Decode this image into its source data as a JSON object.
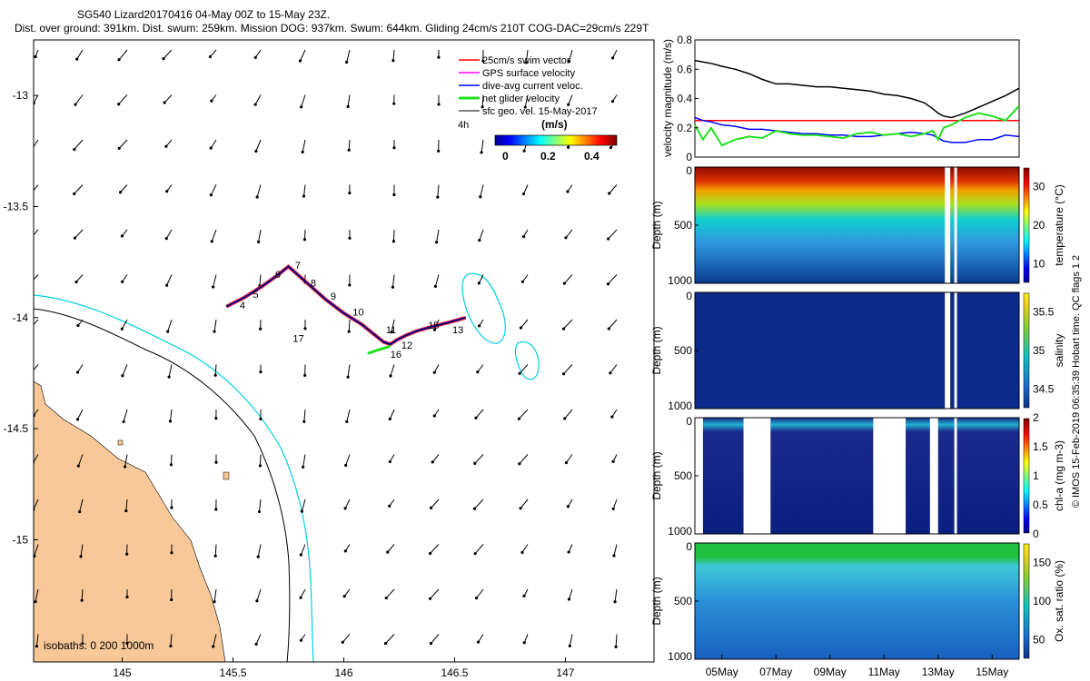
{
  "title_line1": "SG540 Lizard20170416 04-May 00Z to 15-May 23Z.",
  "title_line2": "Dist. over ground: 391km. Dist. swum: 259km. Mission DOG: 937km. Swum: 644km. Gliding 24cm/s 210T COG-DAC=29cm/s 229T",
  "credit": "© IMOS 15-Feb-2019 06:35:39 Hobart time. QC flags 1  2",
  "colors": {
    "land": "#f8c898",
    "isobath_200": "#000000",
    "isobath_1000": "#00d0e0",
    "swim": "#ff0000",
    "gps": "#ff00ff",
    "dac": "#0000ff",
    "net": "#20e020",
    "sfc": "#000000"
  },
  "chart_data": [
    {
      "type": "scatter",
      "subtype": "map",
      "xticks": [
        145,
        145.5,
        146,
        146.5,
        147
      ],
      "yticks": [
        -13,
        -13.5,
        -14,
        -14.5,
        -15
      ],
      "xlim": [
        144.6,
        147.4
      ],
      "ylim": [
        -15.55,
        -12.75
      ],
      "legend": {
        "items": [
          "25cm/s swim vector",
          "GPS surface velocity",
          "dive-avg current veloc.",
          "net glider velocity",
          "sfc geo. vel. 15-May-2017"
        ],
        "placement": "top-right",
        "scale_label": "4h",
        "colorbar_title": "(m/s)",
        "colorbar_ticks": [
          "0",
          "0.2",
          "0.4"
        ]
      },
      "isobaths_label": "isobaths: 0   200  1000m",
      "track_lon": [
        145.47,
        145.55,
        145.63,
        145.7,
        145.75,
        145.83,
        145.92,
        146.0,
        146.08,
        146.13,
        146.18,
        146.21,
        146.24,
        146.28,
        146.33,
        146.4,
        146.48,
        146.55
      ],
      "track_lat": [
        -13.95,
        -13.91,
        -13.86,
        -13.81,
        -13.77,
        -13.84,
        -13.92,
        -13.98,
        -14.03,
        -14.07,
        -14.11,
        -14.12,
        -14.1,
        -14.08,
        -14.06,
        -14.04,
        -14.02,
        -14.0
      ],
      "track_labels": [
        {
          "t": "4",
          "lon": 145.53,
          "lat": -13.96
        },
        {
          "t": "5",
          "lon": 145.59,
          "lat": -13.91
        },
        {
          "t": "6",
          "lon": 145.69,
          "lat": -13.82
        },
        {
          "t": "7",
          "lon": 145.78,
          "lat": -13.78
        },
        {
          "t": "8",
          "lon": 145.85,
          "lat": -13.86
        },
        {
          "t": "9",
          "lon": 145.94,
          "lat": -13.92
        },
        {
          "t": "10",
          "lon": 146.04,
          "lat": -13.99
        },
        {
          "t": "11",
          "lon": 146.19,
          "lat": -14.07
        },
        {
          "t": "12",
          "lon": 146.26,
          "lat": -14.14
        },
        {
          "t": "13",
          "lon": 146.49,
          "lat": -14.07
        },
        {
          "t": "15",
          "lon": 146.38,
          "lat": -14.05
        },
        {
          "t": "16",
          "lon": 146.21,
          "lat": -14.18
        },
        {
          "t": "17",
          "lon": 145.77,
          "lat": -14.11
        }
      ]
    },
    {
      "type": "line",
      "ylabel": "velocity magnitude (m/s)",
      "ylim": [
        0,
        0.8
      ],
      "yticks": [
        "0",
        "0.2",
        "0.4",
        "0.6",
        "0.8"
      ],
      "x_days": [
        4.0,
        4.3,
        4.6,
        5.0,
        5.5,
        6.0,
        6.5,
        7.0,
        7.5,
        8.0,
        8.5,
        9.0,
        9.5,
        10.0,
        10.5,
        11.0,
        11.5,
        12.0,
        12.5,
        12.8,
        13.0,
        13.2,
        13.5,
        14.0,
        14.5,
        15.0,
        15.5,
        16.0
      ],
      "series": [
        {
          "color": "#000000",
          "values": [
            0.66,
            0.65,
            0.64,
            0.62,
            0.6,
            0.57,
            0.53,
            0.5,
            0.5,
            0.49,
            0.48,
            0.48,
            0.47,
            0.46,
            0.45,
            0.43,
            0.42,
            0.4,
            0.37,
            0.33,
            0.3,
            0.28,
            0.27,
            0.3,
            0.34,
            0.38,
            0.42,
            0.47
          ]
        },
        {
          "color": "#ff0000",
          "values": [
            0.25,
            0.25,
            0.25,
            0.25,
            0.25,
            0.25,
            0.25,
            0.25,
            0.25,
            0.25,
            0.25,
            0.25,
            0.25,
            0.25,
            0.25,
            0.25,
            0.25,
            0.25,
            0.25,
            0.25,
            0.25,
            0.25,
            0.25,
            0.25,
            0.25,
            0.25,
            0.25,
            0.25
          ]
        },
        {
          "color": "#0000ff",
          "values": [
            0.27,
            0.25,
            0.24,
            0.22,
            0.21,
            0.19,
            0.19,
            0.18,
            0.17,
            0.16,
            0.16,
            0.15,
            0.15,
            0.14,
            0.14,
            0.15,
            0.16,
            0.17,
            0.16,
            0.15,
            0.13,
            0.11,
            0.1,
            0.1,
            0.12,
            0.12,
            0.15,
            0.14
          ]
        },
        {
          "color": "#20e020",
          "values": [
            0.22,
            0.12,
            0.2,
            0.08,
            0.12,
            0.14,
            0.13,
            0.18,
            0.16,
            0.15,
            0.15,
            0.14,
            0.13,
            0.16,
            0.17,
            0.15,
            0.16,
            0.14,
            0.16,
            0.18,
            0.12,
            0.2,
            0.22,
            0.27,
            0.3,
            0.28,
            0.25,
            0.35
          ]
        }
      ]
    },
    {
      "type": "scatter",
      "subtype": "depth-time section",
      "ylabel": "Depth (m)",
      "ylim": [
        1000,
        0
      ],
      "yticks": [
        "0",
        "500",
        "1000"
      ],
      "colorbar_label": "temperature (°C)",
      "colorbar_ticks": [
        "10",
        "20",
        "30"
      ],
      "gaps_days": [
        [
          13.25,
          13.45
        ],
        [
          13.6,
          13.7
        ]
      ]
    },
    {
      "type": "scatter",
      "subtype": "depth-time section",
      "ylabel": "Depth (m)",
      "ylim": [
        1000,
        0
      ],
      "yticks": [
        "0",
        "500",
        "1000"
      ],
      "colorbar_label": "salinity",
      "colorbar_ticks": [
        "34.5",
        "35",
        "35.5"
      ],
      "gaps_days": [
        [
          13.25,
          13.45
        ],
        [
          13.6,
          13.7
        ]
      ]
    },
    {
      "type": "scatter",
      "subtype": "depth-time section",
      "ylabel": "Depth (m)",
      "ylim": [
        1000,
        0
      ],
      "yticks": [
        "0",
        "500",
        "1000"
      ],
      "colorbar_label": "chl-a (mg m-3)",
      "colorbar_ticks": [
        "0",
        "0.5",
        "1",
        "1.5",
        "2"
      ],
      "gaps_days": [
        [
          4.0,
          4.3
        ],
        [
          5.8,
          6.8
        ],
        [
          10.6,
          11.8
        ],
        [
          12.7,
          13.0
        ],
        [
          13.6,
          13.7
        ]
      ]
    },
    {
      "type": "scatter",
      "subtype": "depth-time section",
      "ylabel": "Depth (m)",
      "ylim": [
        1000,
        0
      ],
      "yticks": [
        "0",
        "500",
        "1000"
      ],
      "colorbar_label": "Ox. sat. ratio (%)",
      "colorbar_ticks": [
        "50",
        "100",
        "150"
      ],
      "xticks": [
        "05May",
        "07May",
        "09May",
        "11May",
        "13May",
        "15May"
      ],
      "gaps_days": []
    }
  ]
}
